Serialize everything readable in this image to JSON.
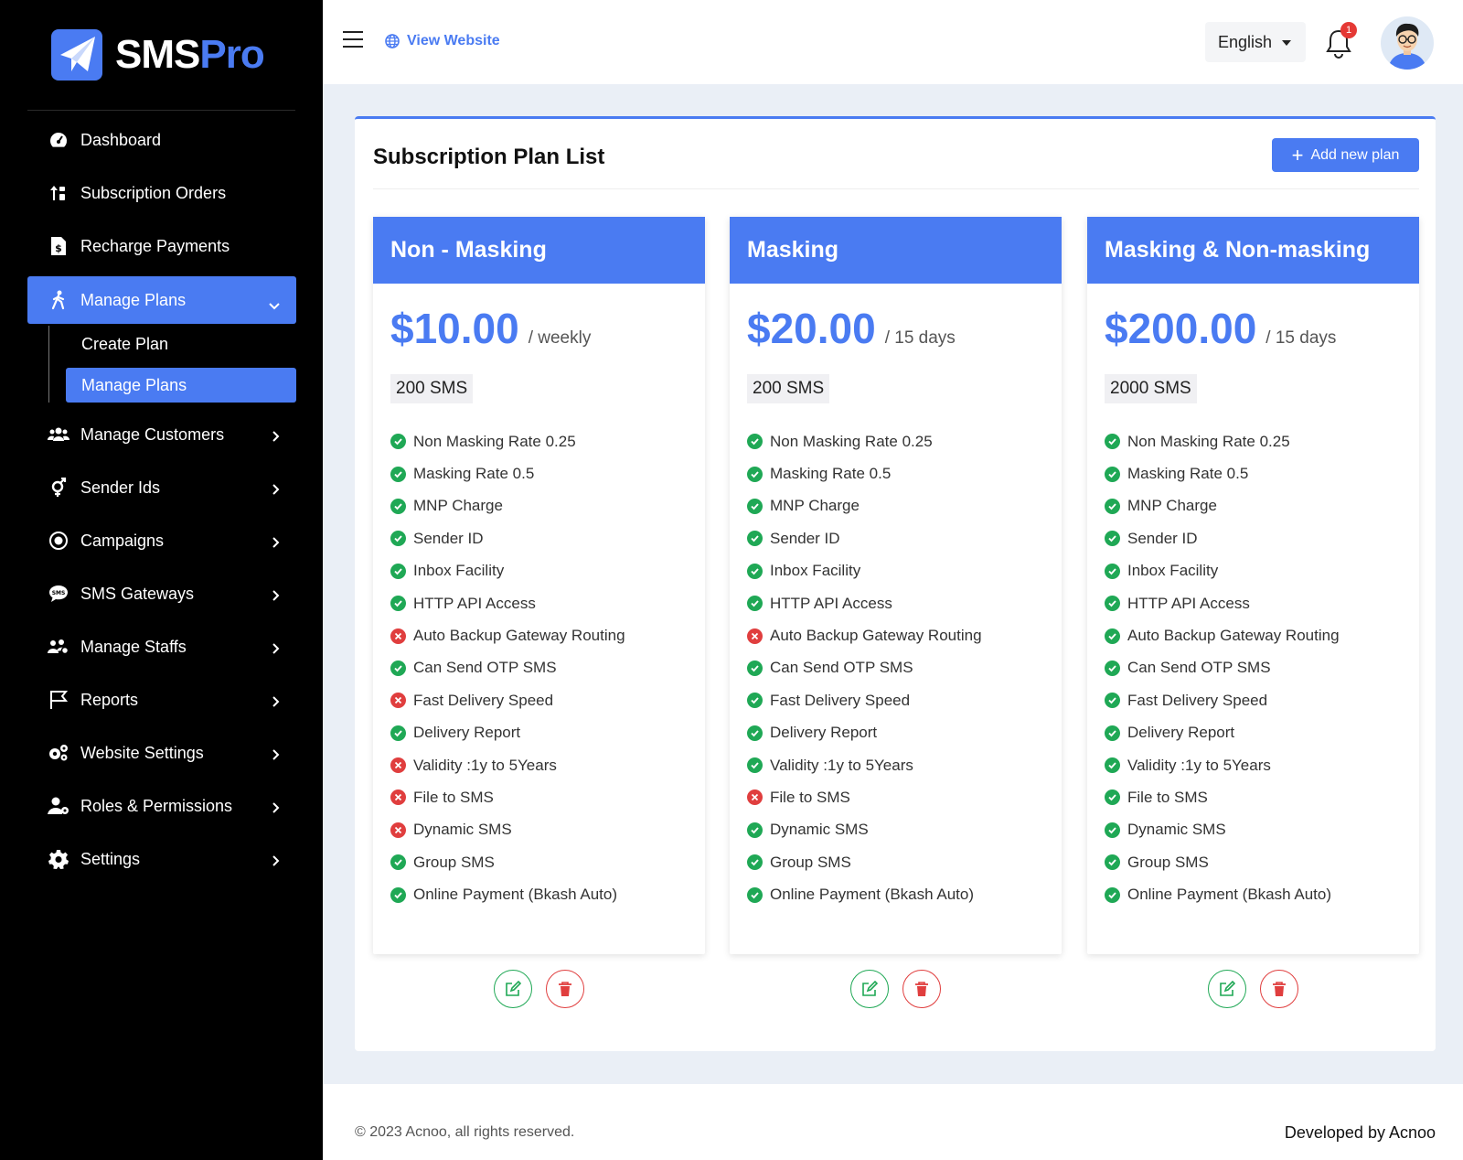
{
  "brand": {
    "part1": "SMS",
    "part2": "Pro",
    "accent": "#4a7bf2"
  },
  "sidebar": {
    "items": [
      {
        "label": "Dashboard",
        "icon": "speedometer-icon"
      },
      {
        "label": "Subscription Orders",
        "icon": "sort-arrows-icon"
      },
      {
        "label": "Recharge Payments",
        "icon": "invoice-dollar-icon"
      },
      {
        "label": "Manage Plans",
        "icon": "walking-person-icon",
        "expanded": true
      },
      {
        "label": "Manage Customers",
        "icon": "users-icon"
      },
      {
        "label": "Sender Ids",
        "icon": "gender-symbol-icon"
      },
      {
        "label": "Campaigns",
        "icon": "target-icon"
      },
      {
        "label": "SMS Gateways",
        "icon": "sms-bubble-icon"
      },
      {
        "label": "Manage Staffs",
        "icon": "staff-group-icon"
      },
      {
        "label": "Reports",
        "icon": "flag-icon"
      },
      {
        "label": "Website Settings",
        "icon": "gears-icon"
      },
      {
        "label": "Roles & Permissions",
        "icon": "user-gear-icon"
      },
      {
        "label": "Settings",
        "icon": "gear-icon"
      }
    ],
    "submenu": [
      {
        "label": "Create Plan"
      },
      {
        "label": "Manage Plans",
        "active": true
      }
    ]
  },
  "header": {
    "view_website": "View Website",
    "language": "English",
    "notification_count": "1"
  },
  "main": {
    "title": "Subscription Plan List",
    "add_button": "Add new plan"
  },
  "plans": [
    {
      "name": "Non - Masking",
      "price": "$10.00",
      "period": "/ weekly",
      "sms": "200 SMS",
      "features": [
        {
          "label": "Non Masking Rate 0.25",
          "included": true
        },
        {
          "label": "Masking Rate 0.5",
          "included": true
        },
        {
          "label": "MNP Charge",
          "included": true
        },
        {
          "label": "Sender ID",
          "included": true
        },
        {
          "label": "Inbox Facility",
          "included": true
        },
        {
          "label": "HTTP API Access",
          "included": true
        },
        {
          "label": "Auto Backup Gateway Routing",
          "included": false
        },
        {
          "label": "Can Send OTP SMS",
          "included": true
        },
        {
          "label": "Fast Delivery Speed",
          "included": false
        },
        {
          "label": "Delivery Report",
          "included": true
        },
        {
          "label": "Validity :1y to 5Years",
          "included": false
        },
        {
          "label": "File to SMS",
          "included": false
        },
        {
          "label": "Dynamic SMS",
          "included": false
        },
        {
          "label": "Group SMS",
          "included": true
        },
        {
          "label": "Online Payment (Bkash Auto)",
          "included": true
        }
      ]
    },
    {
      "name": "Masking",
      "price": "$20.00",
      "period": "/ 15 days",
      "sms": "200 SMS",
      "features": [
        {
          "label": "Non Masking Rate 0.25",
          "included": true
        },
        {
          "label": "Masking Rate 0.5",
          "included": true
        },
        {
          "label": "MNP Charge",
          "included": true
        },
        {
          "label": "Sender ID",
          "included": true
        },
        {
          "label": "Inbox Facility",
          "included": true
        },
        {
          "label": "HTTP API Access",
          "included": true
        },
        {
          "label": "Auto Backup Gateway Routing",
          "included": false
        },
        {
          "label": "Can Send OTP SMS",
          "included": true
        },
        {
          "label": "Fast Delivery Speed",
          "included": true
        },
        {
          "label": "Delivery Report",
          "included": true
        },
        {
          "label": "Validity :1y to 5Years",
          "included": true
        },
        {
          "label": "File to SMS",
          "included": false
        },
        {
          "label": "Dynamic SMS",
          "included": true
        },
        {
          "label": "Group SMS",
          "included": true
        },
        {
          "label": "Online Payment (Bkash Auto)",
          "included": true
        }
      ]
    },
    {
      "name": "Masking & Non-masking",
      "price": "$200.00",
      "period": "/ 15 days",
      "sms": "2000 SMS",
      "features": [
        {
          "label": "Non Masking Rate 0.25",
          "included": true
        },
        {
          "label": "Masking Rate 0.5",
          "included": true
        },
        {
          "label": "MNP Charge",
          "included": true
        },
        {
          "label": "Sender ID",
          "included": true
        },
        {
          "label": "Inbox Facility",
          "included": true
        },
        {
          "label": "HTTP API Access",
          "included": true
        },
        {
          "label": "Auto Backup Gateway Routing",
          "included": true
        },
        {
          "label": "Can Send OTP SMS",
          "included": true
        },
        {
          "label": "Fast Delivery Speed",
          "included": true
        },
        {
          "label": "Delivery Report",
          "included": true
        },
        {
          "label": "Validity :1y to 5Years",
          "included": true
        },
        {
          "label": "File to SMS",
          "included": true
        },
        {
          "label": "Dynamic SMS",
          "included": true
        },
        {
          "label": "Group SMS",
          "included": true
        },
        {
          "label": "Online Payment (Bkash Auto)",
          "included": true
        }
      ]
    }
  ],
  "footer": {
    "copyright": "© 2023 Acnoo, all rights reserved.",
    "developed_by": "Developed by Acnoo"
  },
  "colors": {
    "accent": "#4a7bf2",
    "success": "#1fa855",
    "danger": "#e03e3e"
  }
}
